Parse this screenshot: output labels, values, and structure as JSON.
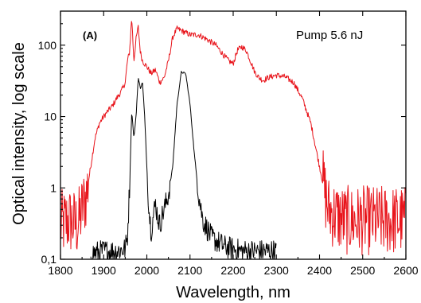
{
  "chart_data": {
    "type": "line",
    "title": "",
    "xlabel": "Wavelength, nm",
    "ylabel": "Optical intensity, log scale",
    "panel_label": "(A)",
    "annotation": "Pump 5.6 nJ",
    "xlim": [
      1800,
      2600
    ],
    "ylim": [
      0.1,
      300
    ],
    "yscale": "log",
    "grid": false,
    "legend": "none",
    "x_ticks": [
      1800,
      1900,
      2000,
      2100,
      2200,
      2300,
      2400,
      2500,
      2600
    ],
    "x_tick_labels": [
      "1800",
      "1900",
      "2000",
      "2100",
      "2200",
      "2300",
      "2400",
      "2500",
      "2600"
    ],
    "y_ticks": [
      0.1,
      1,
      10,
      100
    ],
    "y_tick_labels": [
      "0,1",
      "1",
      "10",
      "100"
    ],
    "series": [
      {
        "color": "#e8141b",
        "noise": 0.9,
        "points": [
          [
            1800,
            0.3
          ],
          [
            1820,
            0.35
          ],
          [
            1840,
            0.3
          ],
          [
            1850,
            0.5
          ],
          [
            1860,
            0.8
          ],
          [
            1870,
            2
          ],
          [
            1880,
            5
          ],
          [
            1890,
            8
          ],
          [
            1900,
            10
          ],
          [
            1910,
            12
          ],
          [
            1920,
            14
          ],
          [
            1930,
            18
          ],
          [
            1940,
            22
          ],
          [
            1950,
            30
          ],
          [
            1955,
            60
          ],
          [
            1960,
            80
          ],
          [
            1965,
            250
          ],
          [
            1970,
            60
          ],
          [
            1975,
            120
          ],
          [
            1980,
            180
          ],
          [
            1985,
            80
          ],
          [
            1990,
            60
          ],
          [
            2000,
            50
          ],
          [
            2010,
            40
          ],
          [
            2020,
            45
          ],
          [
            2030,
            30
          ],
          [
            2040,
            35
          ],
          [
            2050,
            60
          ],
          [
            2060,
            130
          ],
          [
            2070,
            170
          ],
          [
            2080,
            160
          ],
          [
            2100,
            140
          ],
          [
            2120,
            140
          ],
          [
            2140,
            120
          ],
          [
            2160,
            100
          ],
          [
            2180,
            70
          ],
          [
            2190,
            60
          ],
          [
            2200,
            55
          ],
          [
            2210,
            85
          ],
          [
            2220,
            95
          ],
          [
            2230,
            85
          ],
          [
            2240,
            60
          ],
          [
            2250,
            42
          ],
          [
            2260,
            35
          ],
          [
            2270,
            32
          ],
          [
            2280,
            35
          ],
          [
            2300,
            38
          ],
          [
            2320,
            36
          ],
          [
            2340,
            30
          ],
          [
            2360,
            18
          ],
          [
            2380,
            8
          ],
          [
            2390,
            4
          ],
          [
            2400,
            2
          ],
          [
            2410,
            1
          ],
          [
            2420,
            0.5
          ],
          [
            2440,
            0.4
          ],
          [
            2460,
            0.35
          ],
          [
            2480,
            0.35
          ],
          [
            2500,
            0.35
          ],
          [
            2520,
            0.35
          ],
          [
            2540,
            0.35
          ],
          [
            2560,
            0.35
          ],
          [
            2580,
            0.35
          ],
          [
            2600,
            0.35
          ]
        ]
      },
      {
        "color": "#000000",
        "noise": 0.3,
        "points": [
          [
            1870,
            0.12
          ],
          [
            1900,
            0.13
          ],
          [
            1930,
            0.13
          ],
          [
            1950,
            0.14
          ],
          [
            1955,
            0.2
          ],
          [
            1960,
            1
          ],
          [
            1965,
            12
          ],
          [
            1970,
            5
          ],
          [
            1975,
            10
          ],
          [
            1980,
            35
          ],
          [
            1985,
            25
          ],
          [
            1990,
            30
          ],
          [
            1995,
            10
          ],
          [
            2000,
            2
          ],
          [
            2005,
            0.5
          ],
          [
            2010,
            0.25
          ],
          [
            2015,
            0.4
          ],
          [
            2020,
            0.6
          ],
          [
            2025,
            0.4
          ],
          [
            2030,
            0.3
          ],
          [
            2035,
            0.4
          ],
          [
            2040,
            0.5
          ],
          [
            2050,
            0.8
          ],
          [
            2060,
            2
          ],
          [
            2070,
            15
          ],
          [
            2080,
            42
          ],
          [
            2090,
            40
          ],
          [
            2100,
            15
          ],
          [
            2110,
            3
          ],
          [
            2120,
            0.8
          ],
          [
            2130,
            0.35
          ],
          [
            2150,
            0.2
          ],
          [
            2180,
            0.15
          ],
          [
            2220,
            0.13
          ],
          [
            2260,
            0.13
          ],
          [
            2300,
            0.13
          ]
        ]
      }
    ]
  }
}
